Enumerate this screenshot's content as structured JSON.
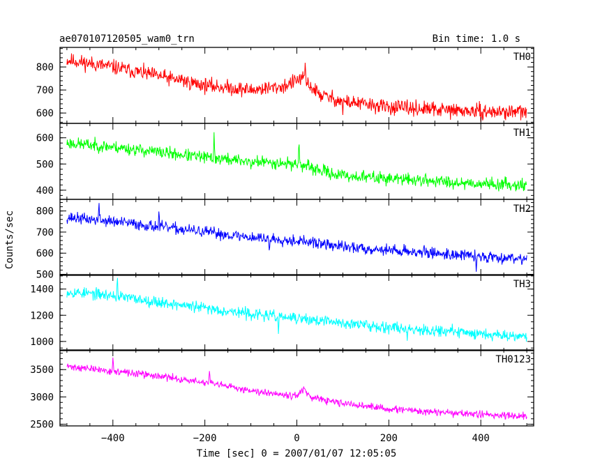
{
  "figure": {
    "title": "ae070107120505_wam0_trn",
    "bin_time": "Bin time: 1.0 s",
    "ylabel": "Counts/sec",
    "xlabel": "Time [sec] 0 = 2007/01/07 12:05:05"
  },
  "chart_data": {
    "type": "line",
    "x_range": [
      -500,
      500
    ],
    "xlim": [
      -515,
      515
    ],
    "x_ticks": [
      -400,
      -200,
      0,
      200,
      400
    ],
    "x_tick_labels": [
      "−400",
      "−200",
      "0",
      "200",
      "400"
    ],
    "x_minor_step": 50,
    "panels": [
      {
        "name": "TH0",
        "color": "#ff0000",
        "ylim": [
          555,
          885
        ],
        "yticks": [
          600,
          700,
          800
        ],
        "y_minor_step": 20,
        "knots": [
          [
            -500,
            830
          ],
          [
            -400,
            800
          ],
          [
            -300,
            760
          ],
          [
            -200,
            720
          ],
          [
            -100,
            700
          ],
          [
            -30,
            715
          ],
          [
            10,
            750
          ],
          [
            25,
            725
          ],
          [
            50,
            680
          ],
          [
            100,
            650
          ],
          [
            200,
            625
          ],
          [
            300,
            615
          ],
          [
            400,
            605
          ],
          [
            500,
            605
          ]
        ],
        "noise": 30,
        "spikes": [
          [
            18,
            80
          ],
          [
            -250,
            30
          ],
          [
            100,
            -40
          ]
        ],
        "seed": 11
      },
      {
        "name": "TH1",
        "color": "#00ff00",
        "ylim": [
          365,
          655
        ],
        "yticks": [
          400,
          500,
          600
        ],
        "y_minor_step": 20,
        "knots": [
          [
            -500,
            580
          ],
          [
            -400,
            565
          ],
          [
            -300,
            545
          ],
          [
            -200,
            525
          ],
          [
            -100,
            510
          ],
          [
            0,
            500
          ],
          [
            50,
            475
          ],
          [
            100,
            455
          ],
          [
            200,
            445
          ],
          [
            300,
            435
          ],
          [
            400,
            425
          ],
          [
            500,
            420
          ]
        ],
        "noise": 22,
        "spikes": [
          [
            -180,
            90
          ],
          [
            5,
            85
          ],
          [
            -100,
            -40
          ]
        ],
        "seed": 23
      },
      {
        "name": "TH2",
        "color": "#0000ff",
        "ylim": [
          495,
          855
        ],
        "yticks": [
          500,
          600,
          700,
          800
        ],
        "y_minor_step": 20,
        "knots": [
          [
            -500,
            770
          ],
          [
            -400,
            750
          ],
          [
            -300,
            725
          ],
          [
            -200,
            700
          ],
          [
            -100,
            675
          ],
          [
            0,
            660
          ],
          [
            50,
            645
          ],
          [
            100,
            630
          ],
          [
            200,
            615
          ],
          [
            300,
            600
          ],
          [
            400,
            585
          ],
          [
            500,
            575
          ]
        ],
        "noise": 25,
        "spikes": [
          [
            -430,
            70
          ],
          [
            -300,
            60
          ],
          [
            390,
            -70
          ],
          [
            -60,
            -60
          ]
        ],
        "seed": 37
      },
      {
        "name": "TH3",
        "color": "#00ffff",
        "ylim": [
          930,
          1510
        ],
        "yticks": [
          1000,
          1200,
          1400
        ],
        "y_minor_step": 50,
        "knots": [
          [
            -500,
            1380
          ],
          [
            -400,
            1350
          ],
          [
            -300,
            1300
          ],
          [
            -200,
            1255
          ],
          [
            -100,
            1210
          ],
          [
            0,
            1175
          ],
          [
            100,
            1140
          ],
          [
            200,
            1110
          ],
          [
            300,
            1085
          ],
          [
            400,
            1060
          ],
          [
            500,
            1040
          ]
        ],
        "noise": 40,
        "spikes": [
          [
            -390,
            120
          ],
          [
            240,
            -110
          ],
          [
            -40,
            -110
          ]
        ],
        "seed": 53
      },
      {
        "name": "TH0123",
        "color": "#ff00ff",
        "ylim": [
          2470,
          3860
        ],
        "yticks": [
          2500,
          3000,
          3500
        ],
        "y_minor_step": 100,
        "knots": [
          [
            -500,
            3560
          ],
          [
            -400,
            3470
          ],
          [
            -300,
            3380
          ],
          [
            -200,
            3260
          ],
          [
            -100,
            3120
          ],
          [
            0,
            3020
          ],
          [
            15,
            3150
          ],
          [
            30,
            2980
          ],
          [
            100,
            2880
          ],
          [
            200,
            2780
          ],
          [
            300,
            2720
          ],
          [
            400,
            2680
          ],
          [
            500,
            2650
          ]
        ],
        "noise": 60,
        "spikes": [
          [
            -190,
            250
          ],
          [
            -400,
            200
          ]
        ],
        "seed": 71
      }
    ]
  }
}
